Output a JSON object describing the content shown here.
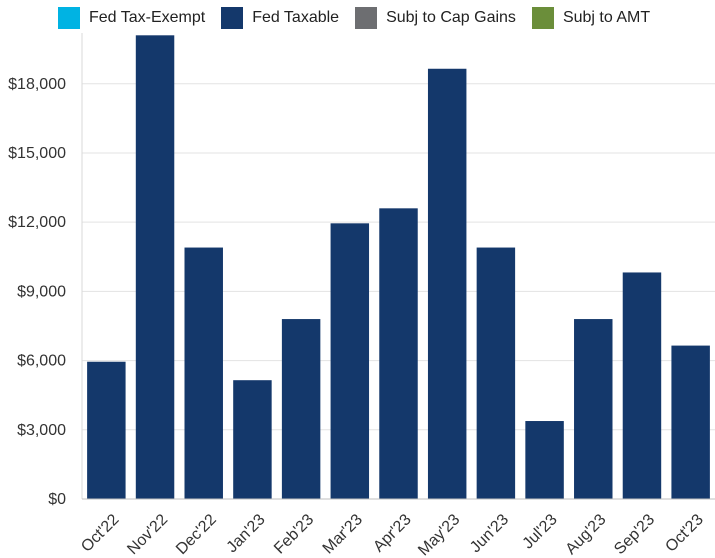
{
  "chart_data": {
    "type": "bar",
    "title": "",
    "xlabel": "",
    "ylabel": "",
    "legend_position": "top-left",
    "grid": true,
    "ylim": [
      0,
      20200
    ],
    "yticks": [
      0,
      3000,
      6000,
      9000,
      12000,
      15000,
      18000
    ],
    "ytick_labels": [
      "$0",
      "$3,000",
      "$6,000",
      "$9,000",
      "$12,000",
      "$15,000",
      "$18,000"
    ],
    "categories": [
      "Oct'22",
      "Nov'22",
      "Dec'22",
      "Jan'23",
      "Feb'23",
      "Mar'23",
      "Apr'23",
      "May'23",
      "Jun'23",
      "Jul'23",
      "Aug'23",
      "Sep'23",
      "Oct'23"
    ],
    "legend": [
      {
        "name": "Fed Tax-Exempt",
        "color": "#00b3e3"
      },
      {
        "name": "Fed Taxable",
        "color": "#14386b"
      },
      {
        "name": "Subj to Cap Gains",
        "color": "#6d6e71"
      },
      {
        "name": "Subj to AMT",
        "color": "#6b8e3a"
      }
    ],
    "series": [
      {
        "name": "Fed Taxable",
        "color": "#14386b",
        "values": [
          5950,
          20100,
          10900,
          5150,
          7800,
          11950,
          12600,
          18650,
          10900,
          3380,
          7800,
          9820,
          6650
        ]
      }
    ]
  }
}
